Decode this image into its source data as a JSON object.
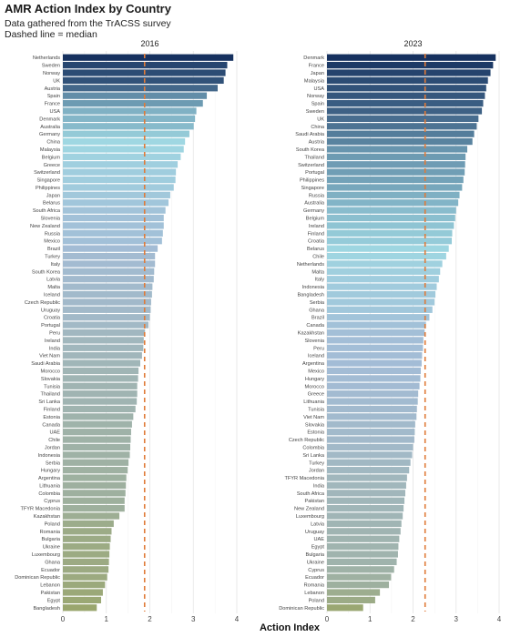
{
  "header": {
    "title": "AMR Action Index by Country",
    "subtitle": "Data gathered from the TrACSS survey",
    "note": "Dashed line = median"
  },
  "chart_data": {
    "type": "bar",
    "orientation": "horizontal",
    "xlabel": "Action Index",
    "xlim": [
      0,
      4.2
    ],
    "xticks": [
      0,
      1,
      2,
      3,
      4
    ],
    "grid": true,
    "reference_line": "median (dashed, orange)",
    "median_color": "#E07B39",
    "color_scale": [
      "#9AA66E",
      "#A3BCD6",
      "#9FD7E2",
      "#16315F"
    ],
    "panels": [
      {
        "title": "2016",
        "median": 1.88,
        "categories": [
          "Netherlands",
          "Sweden",
          "Norway",
          "UK",
          "Austria",
          "Spain",
          "France",
          "USA",
          "Denmark",
          "Australia",
          "Germany",
          "China",
          "Malaysia",
          "Belgium",
          "Greece",
          "Switzerland",
          "Singapore",
          "Philippines",
          "Japan",
          "Belarus",
          "South Africa",
          "Slovenia",
          "New Zealand",
          "Russia",
          "Mexico",
          "Brazil",
          "Turkey",
          "Italy",
          "South Korea",
          "Latvia",
          "Malta",
          "Iceland",
          "Czech Republic",
          "Uruguay",
          "Croatia",
          "Portugal",
          "Peru",
          "Ireland",
          "India",
          "Viet Nam",
          "Saudi Arabia",
          "Morocco",
          "Slovakia",
          "Tunisia",
          "Thailand",
          "Sri Lanka",
          "Finland",
          "Estonia",
          "Canada",
          "UAE",
          "Chile",
          "Jordan",
          "Indonesia",
          "Serbia",
          "Hungary",
          "Argentina",
          "Lithuania",
          "Colombia",
          "Cyprus",
          "TFYR Macedonia",
          "Kazakhstan",
          "Poland",
          "Romania",
          "Bulgaria",
          "Ukraine",
          "Luxembourg",
          "Ghana",
          "Ecuador",
          "Dominican Republic",
          "Lebanon",
          "Pakistan",
          "Egypt",
          "Bangladesh"
        ],
        "values": [
          3.92,
          3.78,
          3.74,
          3.7,
          3.56,
          3.31,
          3.22,
          3.07,
          3.04,
          3.01,
          2.91,
          2.81,
          2.78,
          2.71,
          2.64,
          2.6,
          2.59,
          2.55,
          2.47,
          2.43,
          2.36,
          2.32,
          2.32,
          2.3,
          2.28,
          2.18,
          2.12,
          2.12,
          2.1,
          2.09,
          2.06,
          2.05,
          2.03,
          2.02,
          2.0,
          1.97,
          1.89,
          1.86,
          1.85,
          1.82,
          1.78,
          1.74,
          1.73,
          1.71,
          1.71,
          1.7,
          1.67,
          1.62,
          1.59,
          1.57,
          1.56,
          1.55,
          1.54,
          1.51,
          1.49,
          1.46,
          1.45,
          1.44,
          1.42,
          1.42,
          1.3,
          1.17,
          1.12,
          1.1,
          1.08,
          1.07,
          1.06,
          1.05,
          1.02,
          0.97,
          0.92,
          0.88,
          0.78
        ]
      },
      {
        "title": "2023",
        "median": 2.28,
        "categories": [
          "Denmark",
          "France",
          "Japan",
          "Malaysia",
          "USA",
          "Norway",
          "Spain",
          "Sweden",
          "UK",
          "China",
          "Saudi Arabia",
          "Austria",
          "South Korea",
          "Thailand",
          "Switzerland",
          "Portugal",
          "Philippines",
          "Singapore",
          "Russia",
          "Australia",
          "Germany",
          "Belgium",
          "Ireland",
          "Finland",
          "Croatia",
          "Belarus",
          "Chile",
          "Netherlands",
          "Malta",
          "Italy",
          "Indonesia",
          "Bangladesh",
          "Serbia",
          "Ghana",
          "Brazil",
          "Canada",
          "Kazakhstan",
          "Slovenia",
          "Peru",
          "Iceland",
          "Argentina",
          "Mexico",
          "Hungary",
          "Morocco",
          "Greece",
          "Lithuania",
          "Tunisia",
          "Viet Nam",
          "Slovakia",
          "Estonia",
          "Czech Republic",
          "Colombia",
          "Sri Lanka",
          "Turkey",
          "Jordan",
          "TFYR Macedonia",
          "India",
          "South Africa",
          "Pakistan",
          "New Zealand",
          "Luxembourg",
          "Latvia",
          "Uruguay",
          "UAE",
          "Egypt",
          "Bulgaria",
          "Ukraine",
          "Cyprus",
          "Ecuador",
          "Romania",
          "Lebanon",
          "Poland",
          "Dominican Republic"
        ],
        "values": [
          3.92,
          3.86,
          3.8,
          3.74,
          3.7,
          3.67,
          3.63,
          3.6,
          3.52,
          3.48,
          3.42,
          3.38,
          3.26,
          3.22,
          3.21,
          3.2,
          3.17,
          3.14,
          3.08,
          3.05,
          3.0,
          2.98,
          2.95,
          2.91,
          2.9,
          2.83,
          2.77,
          2.68,
          2.63,
          2.6,
          2.55,
          2.52,
          2.5,
          2.45,
          2.38,
          2.3,
          2.27,
          2.24,
          2.23,
          2.21,
          2.2,
          2.18,
          2.17,
          2.15,
          2.12,
          2.11,
          2.09,
          2.08,
          2.05,
          2.04,
          2.03,
          2.0,
          1.98,
          1.94,
          1.91,
          1.86,
          1.84,
          1.82,
          1.8,
          1.78,
          1.76,
          1.73,
          1.71,
          1.68,
          1.66,
          1.65,
          1.62,
          1.56,
          1.49,
          1.44,
          1.23,
          1.12,
          0.84
        ]
      }
    ]
  }
}
